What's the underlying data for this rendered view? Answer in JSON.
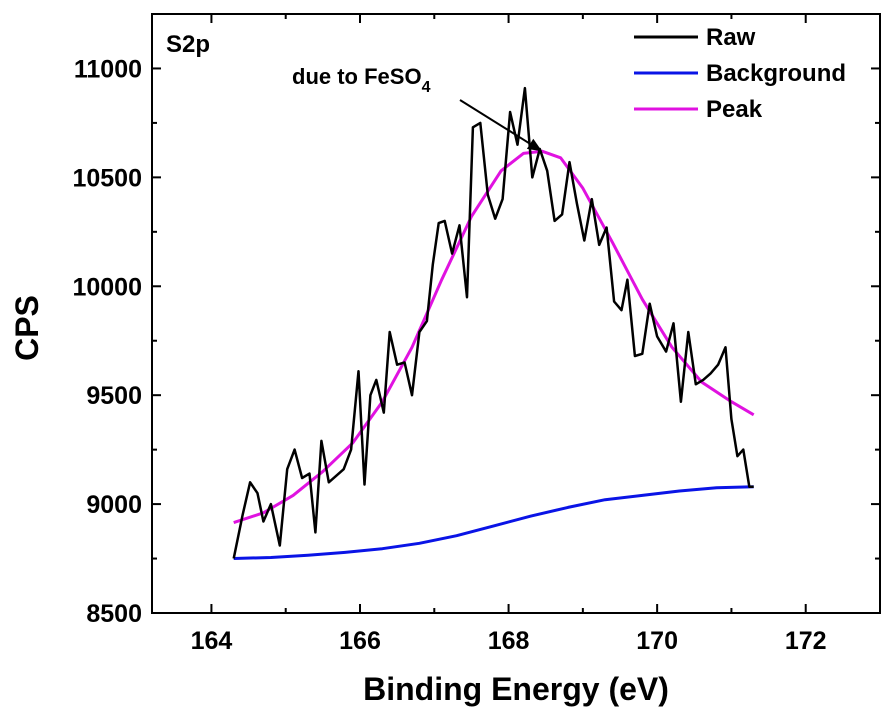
{
  "chart_data": {
    "type": "line",
    "panel_label": "S2p",
    "xlabel": "Binding Energy (eV)",
    "ylabel": "CPS",
    "xlim": [
      163.2,
      173.0
    ],
    "ylim": [
      8500,
      11250
    ],
    "xticks": [
      164,
      166,
      168,
      170,
      172
    ],
    "yticks": [
      8500,
      9000,
      9500,
      10000,
      10500,
      11000
    ],
    "grid": false,
    "legend_position": "top-right",
    "colors": {
      "Raw": "#000000",
      "Background": "#0a14e6",
      "Peak": "#e012e0",
      "arrow": "#000000"
    },
    "annotation": {
      "text_main": "due to FeSO",
      "text_subscript": "4",
      "arrow_to": [
        168.45,
        10620
      ]
    },
    "series": [
      {
        "name": "Raw",
        "x": [
          164.3,
          164.42,
          164.52,
          164.62,
          164.7,
          164.8,
          164.92,
          165.02,
          165.12,
          165.22,
          165.32,
          165.4,
          165.48,
          165.58,
          165.68,
          165.78,
          165.88,
          165.98,
          166.06,
          166.14,
          166.22,
          166.32,
          166.4,
          166.5,
          166.6,
          166.7,
          166.8,
          166.9,
          166.98,
          167.06,
          167.14,
          167.24,
          167.34,
          167.44,
          167.52,
          167.62,
          167.72,
          167.82,
          167.92,
          168.02,
          168.12,
          168.22,
          168.32,
          168.42,
          168.52,
          168.62,
          168.72,
          168.82,
          168.92,
          169.02,
          169.12,
          169.22,
          169.32,
          169.42,
          169.52,
          169.6,
          169.7,
          169.8,
          169.9,
          170.0,
          170.12,
          170.22,
          170.32,
          170.42,
          170.52,
          170.62,
          170.72,
          170.82,
          170.92,
          171.0,
          171.08,
          171.16,
          171.24,
          171.3
        ],
        "y": [
          8750,
          8950,
          9100,
          9050,
          8920,
          9000,
          8810,
          9160,
          9250,
          9120,
          9140,
          8870,
          9290,
          9100,
          9130,
          9160,
          9250,
          9610,
          9090,
          9500,
          9570,
          9420,
          9790,
          9640,
          9650,
          9500,
          9790,
          9840,
          10100,
          10290,
          10300,
          10150,
          10280,
          9950,
          10730,
          10750,
          10420,
          10310,
          10400,
          10800,
          10650,
          10910,
          10500,
          10630,
          10530,
          10300,
          10330,
          10570,
          10380,
          10210,
          10400,
          10190,
          10270,
          9930,
          9890,
          10030,
          9680,
          9690,
          9920,
          9770,
          9700,
          9830,
          9470,
          9790,
          9550,
          9570,
          9600,
          9640,
          9720,
          9390,
          9220,
          9250,
          9080,
          9080
        ]
      },
      {
        "name": "Background",
        "x": [
          164.3,
          164.8,
          165.3,
          165.8,
          166.3,
          166.8,
          167.3,
          167.8,
          168.3,
          168.8,
          169.3,
          169.8,
          170.3,
          170.8,
          171.3
        ],
        "y": [
          8750,
          8755,
          8765,
          8778,
          8795,
          8820,
          8855,
          8900,
          8945,
          8985,
          9020,
          9040,
          9060,
          9075,
          9080
        ]
      },
      {
        "name": "Peak",
        "x": [
          164.3,
          164.7,
          165.1,
          165.5,
          165.9,
          166.3,
          166.7,
          167.1,
          167.5,
          167.9,
          168.2,
          168.45,
          168.7,
          169.0,
          169.4,
          169.8,
          170.2,
          170.6,
          171.0,
          171.3
        ],
        "y": [
          8915,
          8960,
          9040,
          9150,
          9280,
          9470,
          9720,
          10030,
          10320,
          10530,
          10610,
          10620,
          10590,
          10450,
          10200,
          9940,
          9720,
          9560,
          9470,
          9410
        ]
      }
    ]
  }
}
